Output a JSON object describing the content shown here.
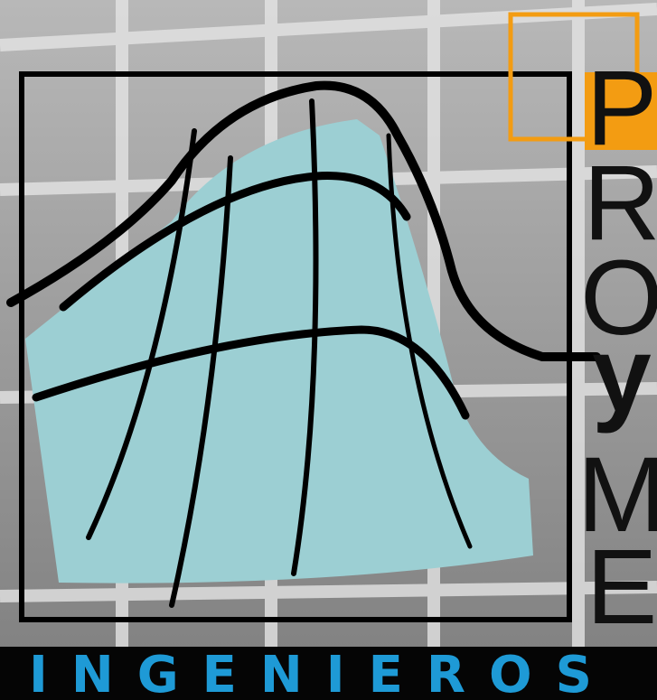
{
  "logo": {
    "letters": [
      "P",
      "R",
      "O",
      "y",
      "M",
      "E"
    ],
    "tagline": "INGENIEROS"
  }
}
